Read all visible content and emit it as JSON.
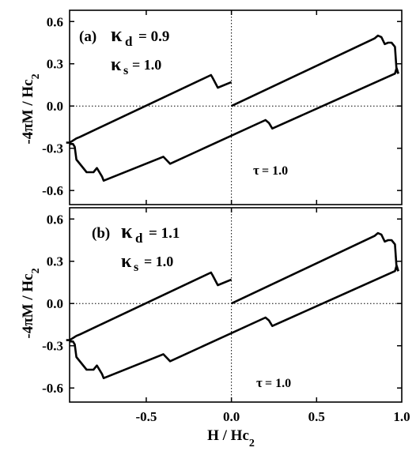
{
  "chart_data": [
    {
      "type": "line",
      "panel_label": "(a)",
      "ylabel_parts": {
        "main": "-4πM / Hc",
        "sub": "2"
      },
      "xlim": [
        -0.95,
        1.0
      ],
      "ylim": [
        -0.7,
        0.68
      ],
      "yticks": [
        "0.6",
        "0.3",
        "0.0",
        "-0.3",
        "-0.6"
      ],
      "ytick_values": [
        0.6,
        0.3,
        0.0,
        -0.3,
        -0.6
      ],
      "xticks": [],
      "grid": false,
      "annotations": {
        "kappa_d": {
          "symbol": "κ",
          "sub": "d",
          "value": "= 0.9"
        },
        "kappa_s": {
          "symbol": "κ",
          "sub": "s",
          "value": "= 1.0"
        },
        "tau": {
          "symbol": "τ",
          "value": "= 1.0"
        }
      },
      "series": [
        {
          "x": [
            -0.95,
            -0.93,
            -0.92,
            -0.91,
            -0.85,
            -0.81,
            -0.79,
            -0.76,
            -0.75,
            -0.42,
            -0.4,
            -0.36,
            0.2,
            0.22,
            0.24,
            0.96,
            0.97,
            0.98
          ],
          "y": [
            -0.27,
            -0.27,
            -0.29,
            -0.38,
            -0.47,
            -0.47,
            -0.44,
            -0.5,
            -0.53,
            -0.37,
            -0.36,
            -0.41,
            -0.1,
            -0.12,
            -0.16,
            0.23,
            0.27,
            0.23
          ]
        },
        {
          "x": [
            -0.97,
            -0.95,
            -0.91,
            -0.89,
            -0.12,
            -0.11,
            -0.08,
            0.0
          ],
          "y": [
            -0.26,
            -0.26,
            -0.23,
            -0.22,
            0.22,
            0.2,
            0.13,
            0.17
          ]
        },
        {
          "x": [
            0.0,
            0.84,
            0.86,
            0.88,
            0.9,
            0.92,
            0.94,
            0.96,
            0.97,
            0.98
          ],
          "y": [
            0.0,
            0.48,
            0.5,
            0.49,
            0.44,
            0.45,
            0.45,
            0.42,
            0.25,
            0.23
          ]
        }
      ]
    },
    {
      "type": "line",
      "panel_label": "(b)",
      "ylabel_parts": {
        "main": "-4πM / Hc",
        "sub": "2"
      },
      "xlim": [
        -0.95,
        1.0
      ],
      "ylim": [
        -0.7,
        0.68
      ],
      "yticks": [
        "0.6",
        "0.3",
        "0.0",
        "-0.3",
        "-0.6"
      ],
      "ytick_values": [
        0.6,
        0.3,
        0.0,
        -0.3,
        -0.6
      ],
      "xticks": [
        "-0.5",
        "0.0",
        "0.5",
        "1.0"
      ],
      "xtick_values": [
        -0.5,
        0.0,
        0.5,
        1.0
      ],
      "xlabel_parts": {
        "main": "H / Hc",
        "sub": "2"
      },
      "grid": false,
      "annotations": {
        "kappa_d": {
          "symbol": "κ",
          "sub": "d",
          "value": "= 1.1"
        },
        "kappa_s": {
          "symbol": "κ",
          "sub": "s",
          "value": "= 1.0"
        },
        "tau": {
          "symbol": "τ",
          "value": "= 1.0"
        }
      },
      "series": [
        {
          "x": [
            -0.95,
            -0.93,
            -0.92,
            -0.91,
            -0.85,
            -0.81,
            -0.79,
            -0.76,
            -0.75,
            -0.42,
            -0.4,
            -0.36,
            0.2,
            0.22,
            0.24,
            0.96,
            0.97,
            0.98
          ],
          "y": [
            -0.27,
            -0.27,
            -0.29,
            -0.38,
            -0.47,
            -0.47,
            -0.44,
            -0.5,
            -0.53,
            -0.37,
            -0.36,
            -0.41,
            -0.1,
            -0.12,
            -0.16,
            0.23,
            0.27,
            0.23
          ]
        },
        {
          "x": [
            -0.97,
            -0.95,
            -0.91,
            -0.89,
            -0.12,
            -0.11,
            -0.08,
            0.0
          ],
          "y": [
            -0.26,
            -0.26,
            -0.23,
            -0.22,
            0.22,
            0.2,
            0.13,
            0.17
          ]
        },
        {
          "x": [
            0.0,
            0.84,
            0.86,
            0.88,
            0.9,
            0.92,
            0.94,
            0.96,
            0.97,
            0.98
          ],
          "y": [
            0.0,
            0.48,
            0.5,
            0.49,
            0.44,
            0.45,
            0.45,
            0.42,
            0.25,
            0.23
          ]
        }
      ]
    }
  ]
}
